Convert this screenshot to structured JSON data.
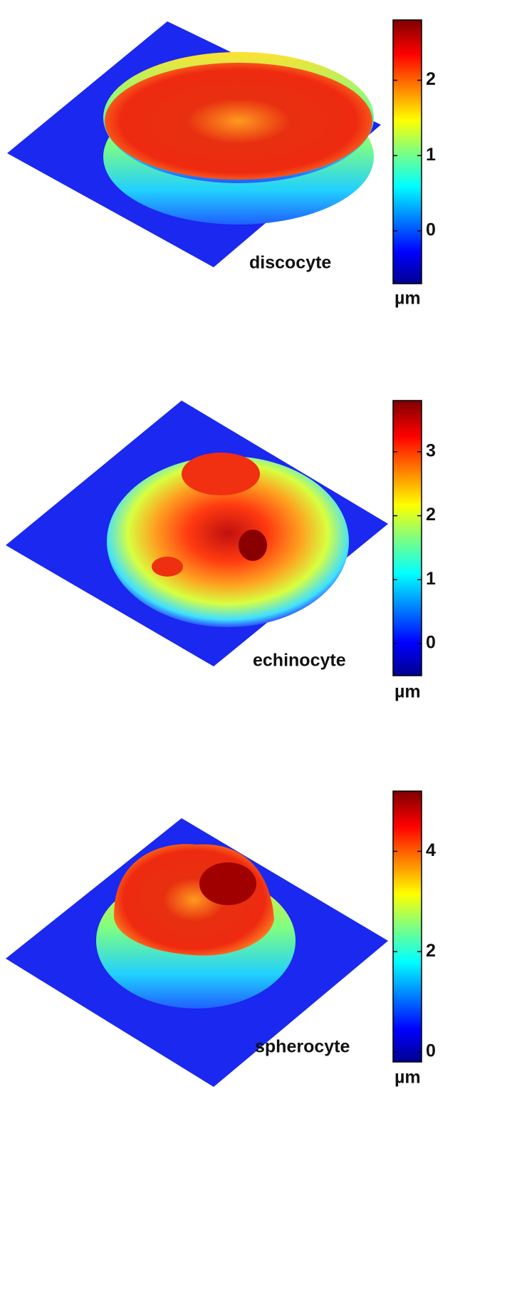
{
  "panels": [
    {
      "label": "discocyte",
      "unit": "µm",
      "colorbar": {
        "lim": [
          -0.7,
          2.8
        ],
        "ticks": [
          0,
          1,
          2
        ]
      }
    },
    {
      "label": "echinocyte",
      "unit": "µm",
      "colorbar": {
        "lim": [
          -0.5,
          3.8
        ],
        "ticks": [
          0,
          1,
          2,
          3
        ]
      }
    },
    {
      "label": "spherocyte",
      "unit": "µm",
      "colorbar": {
        "lim": [
          -0.2,
          5.2
        ],
        "ticks": [
          0,
          2,
          4
        ]
      }
    }
  ]
}
